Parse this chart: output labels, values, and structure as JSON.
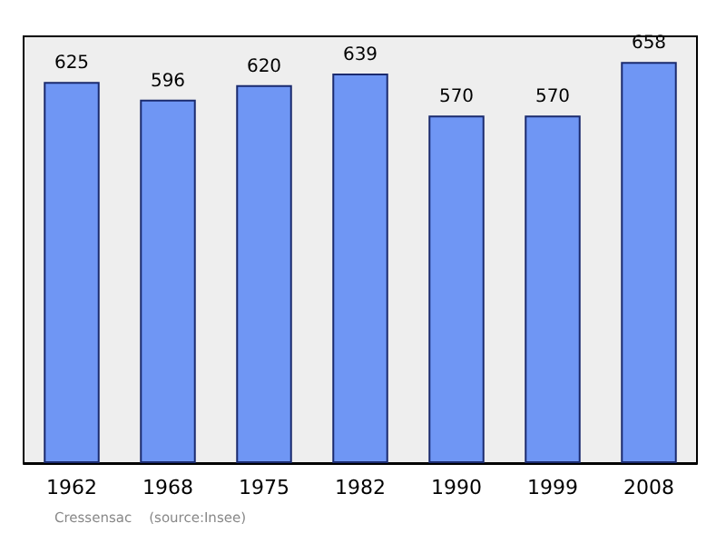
{
  "chart_data": {
    "type": "bar",
    "categories": [
      "1962",
      "1968",
      "1975",
      "1982",
      "1990",
      "1999",
      "2008"
    ],
    "values": [
      625,
      596,
      620,
      639,
      570,
      570,
      658
    ],
    "color": "#6f96f4",
    "data_labels": true,
    "grid": false,
    "tick_labels": "x",
    "annotations": [
      "Cressensac    (source:Insee)"
    ]
  }
}
